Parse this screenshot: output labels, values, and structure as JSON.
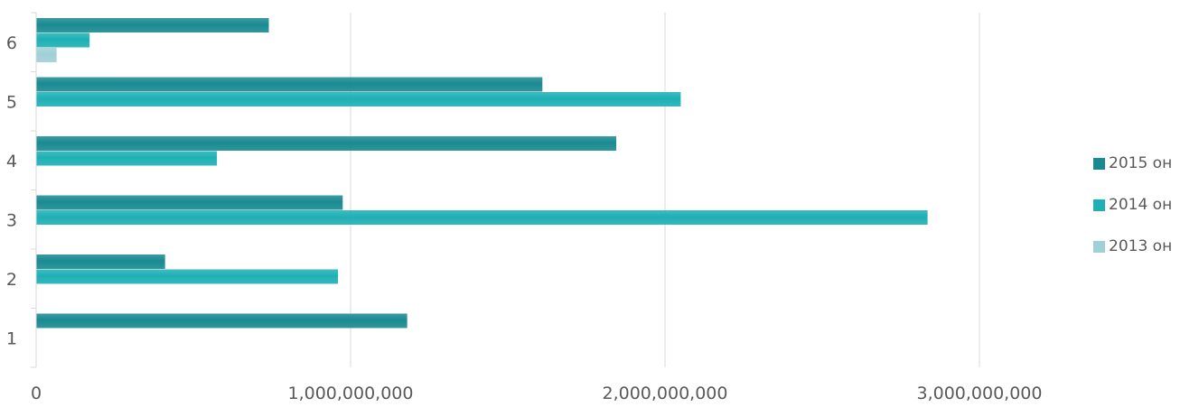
{
  "chart_data": {
    "type": "bar",
    "orientation": "horizontal",
    "categories": [
      "1",
      "2",
      "3",
      "4",
      "5",
      "6"
    ],
    "series": [
      {
        "name": "2015 он",
        "color": "#1a8a91",
        "values": [
          1180000000,
          410000000,
          975000000,
          1845000000,
          1610000000,
          740000000
        ]
      },
      {
        "name": "2014 он",
        "color": "#1eb0b5",
        "values": [
          0,
          960000000,
          2835000000,
          575000000,
          2050000000,
          170000000
        ]
      },
      {
        "name": "2013 он",
        "color": "#9fd0d6",
        "values": [
          0,
          0,
          0,
          0,
          0,
          65000000
        ]
      }
    ],
    "xlim": [
      0,
      3500000000
    ],
    "xticks": [
      "0",
      "1,000,000,000",
      "2,000,000,000",
      "3,000,000,000"
    ],
    "xtick_values": [
      0,
      1000000000,
      2000000000,
      3000000000
    ],
    "grid": true,
    "legend": "right"
  }
}
